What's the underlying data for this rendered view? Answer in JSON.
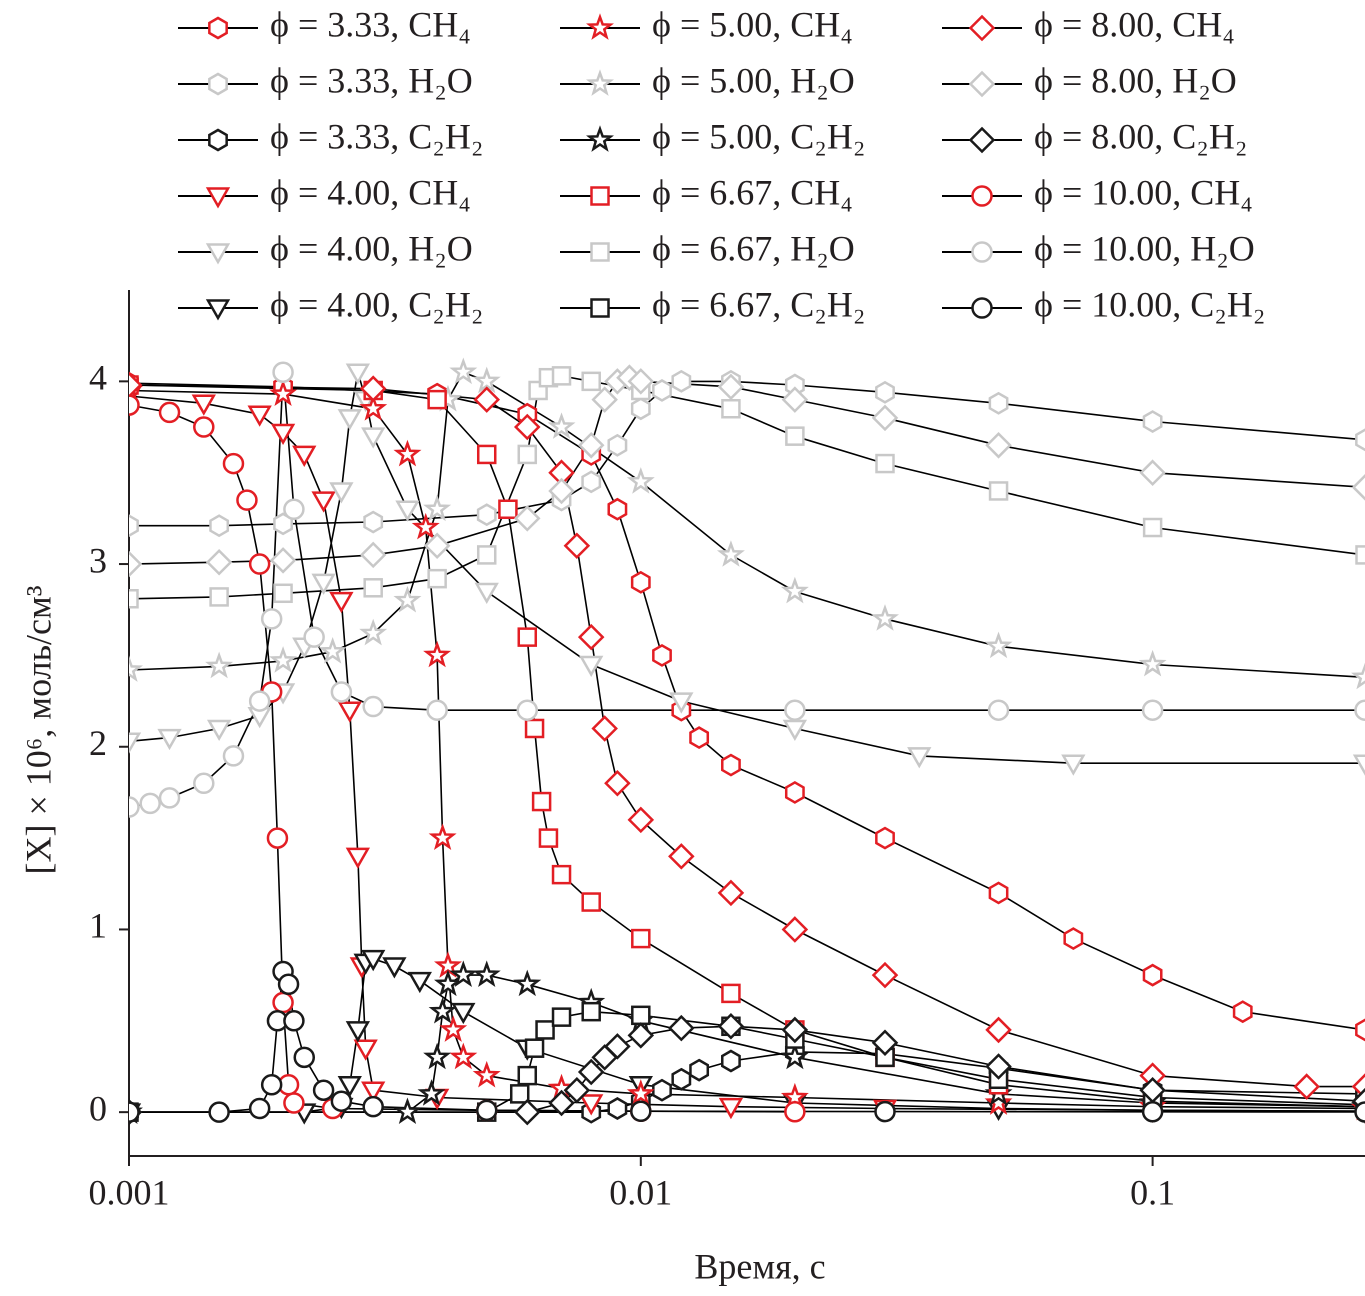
{
  "chart_data": {
    "type": "line",
    "x_label": "Время, с",
    "y_label": "[X] × 10⁶, моль/см³",
    "xlim": [
      0.001,
      0.26
    ],
    "ylim": [
      -0.24,
      4.5
    ],
    "xticks": [
      0.001,
      0.01,
      0.1
    ],
    "yticks": [
      0,
      1,
      2,
      3,
      4
    ],
    "x_log": true,
    "line_color": "#000000",
    "series": [
      {
        "name": "ϕ = 3.33, CH₄",
        "color": "#e31e24",
        "marker": "hexagon",
        "x": [
          0.001,
          0.002,
          0.004,
          0.006,
          0.008,
          0.009,
          0.01,
          0.011,
          0.012,
          0.013,
          0.015,
          0.02,
          0.03,
          0.05,
          0.07,
          0.1,
          0.15,
          0.26
        ],
        "values": [
          3.99,
          3.97,
          3.93,
          3.82,
          3.6,
          3.3,
          2.9,
          2.5,
          2.2,
          2.05,
          1.9,
          1.75,
          1.5,
          1.2,
          0.95,
          0.75,
          0.55,
          0.45
        ]
      },
      {
        "name": "ϕ = 3.33, H₂O",
        "color": "#c8c8c8",
        "marker": "hexagon",
        "x": [
          0.001,
          0.0015,
          0.002,
          0.003,
          0.005,
          0.007,
          0.008,
          0.009,
          0.01,
          0.011,
          0.012,
          0.015,
          0.02,
          0.03,
          0.05,
          0.1,
          0.26
        ],
        "values": [
          3.21,
          3.21,
          3.22,
          3.23,
          3.27,
          3.35,
          3.45,
          3.65,
          3.85,
          3.95,
          4.0,
          4.0,
          3.98,
          3.94,
          3.88,
          3.78,
          3.68
        ]
      },
      {
        "name": "ϕ = 3.33, C₂H₂",
        "color": "#1a1a1a",
        "marker": "hexagon",
        "x": [
          0.001,
          0.008,
          0.009,
          0.01,
          0.011,
          0.012,
          0.013,
          0.015,
          0.02,
          0.03,
          0.05,
          0.1,
          0.26
        ],
        "values": [
          0,
          0,
          0.02,
          0.06,
          0.12,
          0.18,
          0.23,
          0.28,
          0.33,
          0.32,
          0.24,
          0.12,
          0.1
        ]
      },
      {
        "name": "ϕ = 4.00, CH₄",
        "color": "#e31e24",
        "marker": "triangle",
        "x": [
          0.001,
          0.0014,
          0.0018,
          0.002,
          0.0022,
          0.0024,
          0.0026,
          0.0027,
          0.0028,
          0.00285,
          0.0029,
          0.003,
          0.004,
          0.008,
          0.015,
          0.03,
          0.1,
          0.26
        ],
        "values": [
          3.92,
          3.88,
          3.82,
          3.72,
          3.6,
          3.35,
          2.8,
          2.2,
          1.4,
          0.8,
          0.35,
          0.12,
          0.08,
          0.05,
          0.03,
          0.02,
          0.01,
          0.005
        ]
      },
      {
        "name": "ϕ = 4.00, H₂O",
        "color": "#c8c8c8",
        "marker": "triangle",
        "x": [
          0.001,
          0.0012,
          0.0015,
          0.0018,
          0.002,
          0.0022,
          0.0024,
          0.0026,
          0.0027,
          0.0028,
          0.0029,
          0.003,
          0.0035,
          0.005,
          0.008,
          0.012,
          0.02,
          0.035,
          0.07,
          0.26
        ],
        "values": [
          2.03,
          2.05,
          2.1,
          2.17,
          2.3,
          2.55,
          2.9,
          3.4,
          3.8,
          4.05,
          3.9,
          3.7,
          3.3,
          2.85,
          2.45,
          2.25,
          2.1,
          1.95,
          1.91,
          1.91
        ]
      },
      {
        "name": "ϕ = 4.00, C₂H₂",
        "color": "#1a1a1a",
        "marker": "triangle",
        "x": [
          0.001,
          0.0022,
          0.0026,
          0.0027,
          0.0028,
          0.0029,
          0.003,
          0.0033,
          0.0037,
          0.0045,
          0.006,
          0.01,
          0.02,
          0.05,
          0.1,
          0.26
        ],
        "values": [
          0,
          0,
          0.03,
          0.15,
          0.45,
          0.82,
          0.84,
          0.8,
          0.72,
          0.55,
          0.35,
          0.15,
          0.05,
          0.02,
          0.01,
          0.005
        ]
      },
      {
        "name": "ϕ = 5.00, CH₄",
        "color": "#e31e24",
        "marker": "star",
        "x": [
          0.001,
          0.002,
          0.003,
          0.0035,
          0.0038,
          0.004,
          0.0041,
          0.0042,
          0.0043,
          0.0045,
          0.005,
          0.007,
          0.01,
          0.02,
          0.05,
          0.1,
          0.26
        ],
        "values": [
          3.95,
          3.93,
          3.85,
          3.6,
          3.2,
          2.5,
          1.5,
          0.8,
          0.45,
          0.3,
          0.2,
          0.13,
          0.1,
          0.08,
          0.05,
          0.03,
          0.02
        ]
      },
      {
        "name": "ϕ = 5.00, H₂O",
        "color": "#c8c8c8",
        "marker": "star",
        "x": [
          0.001,
          0.0015,
          0.002,
          0.0025,
          0.003,
          0.0035,
          0.004,
          0.0042,
          0.0045,
          0.005,
          0.007,
          0.01,
          0.015,
          0.02,
          0.03,
          0.05,
          0.1,
          0.26
        ],
        "values": [
          2.42,
          2.44,
          2.47,
          2.52,
          2.62,
          2.8,
          3.3,
          3.9,
          4.05,
          4.0,
          3.75,
          3.45,
          3.05,
          2.85,
          2.7,
          2.55,
          2.45,
          2.38
        ]
      },
      {
        "name": "ϕ = 5.00, C₂H₂",
        "color": "#1a1a1a",
        "marker": "star",
        "x": [
          0.001,
          0.0035,
          0.0039,
          0.004,
          0.0041,
          0.0042,
          0.0045,
          0.005,
          0.006,
          0.008,
          0.01,
          0.02,
          0.05,
          0.1,
          0.26
        ],
        "values": [
          0,
          0,
          0.1,
          0.3,
          0.55,
          0.7,
          0.75,
          0.75,
          0.7,
          0.6,
          0.5,
          0.3,
          0.1,
          0.05,
          0.03
        ]
      },
      {
        "name": "ϕ = 6.67, CH₄",
        "color": "#e31e24",
        "marker": "square",
        "x": [
          0.001,
          0.003,
          0.004,
          0.005,
          0.0055,
          0.006,
          0.0062,
          0.0064,
          0.0066,
          0.007,
          0.008,
          0.01,
          0.015,
          0.02,
          0.03,
          0.05,
          0.1,
          0.26
        ],
        "values": [
          3.98,
          3.95,
          3.9,
          3.6,
          3.3,
          2.6,
          2.1,
          1.7,
          1.5,
          1.3,
          1.15,
          0.95,
          0.65,
          0.45,
          0.3,
          0.15,
          0.06,
          0.03
        ]
      },
      {
        "name": "ϕ = 6.67, H₂O",
        "color": "#c8c8c8",
        "marker": "square",
        "x": [
          0.001,
          0.0015,
          0.002,
          0.003,
          0.004,
          0.005,
          0.006,
          0.0063,
          0.0066,
          0.007,
          0.008,
          0.01,
          0.015,
          0.02,
          0.03,
          0.05,
          0.1,
          0.26
        ],
        "values": [
          2.81,
          2.82,
          2.84,
          2.87,
          2.92,
          3.05,
          3.6,
          3.95,
          4.02,
          4.03,
          4.0,
          3.95,
          3.85,
          3.7,
          3.55,
          3.4,
          3.2,
          3.05
        ]
      },
      {
        "name": "ϕ = 6.67, C₂H₂",
        "color": "#1a1a1a",
        "marker": "square",
        "x": [
          0.001,
          0.005,
          0.0058,
          0.006,
          0.0062,
          0.0065,
          0.007,
          0.008,
          0.01,
          0.015,
          0.02,
          0.03,
          0.05,
          0.1,
          0.26
        ],
        "values": [
          0,
          0,
          0.1,
          0.2,
          0.35,
          0.45,
          0.52,
          0.55,
          0.53,
          0.47,
          0.4,
          0.3,
          0.18,
          0.08,
          0.04
        ]
      },
      {
        "name": "ϕ = 8.00, CH₄",
        "color": "#e31e24",
        "marker": "diamond",
        "x": [
          0.001,
          0.003,
          0.005,
          0.006,
          0.007,
          0.0075,
          0.008,
          0.0085,
          0.009,
          0.01,
          0.012,
          0.015,
          0.02,
          0.03,
          0.05,
          0.1,
          0.2,
          0.26
        ],
        "values": [
          3.98,
          3.96,
          3.9,
          3.75,
          3.5,
          3.1,
          2.6,
          2.1,
          1.8,
          1.6,
          1.4,
          1.2,
          1.0,
          0.75,
          0.45,
          0.2,
          0.14,
          0.14
        ]
      },
      {
        "name": "ϕ = 8.00, H₂O",
        "color": "#c8c8c8",
        "marker": "diamond",
        "x": [
          0.001,
          0.0015,
          0.002,
          0.003,
          0.004,
          0.006,
          0.007,
          0.008,
          0.0085,
          0.009,
          0.0095,
          0.01,
          0.015,
          0.02,
          0.03,
          0.05,
          0.1,
          0.26
        ],
        "values": [
          3.0,
          3.01,
          3.02,
          3.05,
          3.1,
          3.25,
          3.4,
          3.65,
          3.9,
          4.0,
          4.02,
          4.0,
          3.97,
          3.9,
          3.8,
          3.65,
          3.5,
          3.42
        ]
      },
      {
        "name": "ϕ = 8.00, C₂H₂",
        "color": "#1a1a1a",
        "marker": "diamond",
        "x": [
          0.001,
          0.006,
          0.007,
          0.0075,
          0.008,
          0.0085,
          0.009,
          0.01,
          0.012,
          0.015,
          0.02,
          0.03,
          0.05,
          0.1,
          0.26
        ],
        "values": [
          0,
          0,
          0.05,
          0.12,
          0.22,
          0.3,
          0.36,
          0.42,
          0.46,
          0.47,
          0.45,
          0.38,
          0.25,
          0.12,
          0.06
        ]
      },
      {
        "name": "ϕ = 10.00, CH₄",
        "color": "#e31e24",
        "marker": "circle",
        "x": [
          0.001,
          0.0012,
          0.0014,
          0.0016,
          0.0017,
          0.0018,
          0.0019,
          0.00195,
          0.002,
          0.00205,
          0.0021,
          0.0025,
          0.005,
          0.01,
          0.02
        ],
        "values": [
          3.87,
          3.83,
          3.75,
          3.55,
          3.35,
          3.0,
          2.3,
          1.5,
          0.6,
          0.15,
          0.05,
          0.02,
          0.01,
          0.005,
          0.002
        ]
      },
      {
        "name": "ϕ = 10.00, H₂O",
        "color": "#c8c8c8",
        "marker": "circle",
        "x": [
          0.001,
          0.0011,
          0.0012,
          0.0014,
          0.0016,
          0.0018,
          0.0019,
          0.002,
          0.0021,
          0.0023,
          0.0026,
          0.003,
          0.004,
          0.006,
          0.02,
          0.05,
          0.1,
          0.26
        ],
        "values": [
          1.67,
          1.69,
          1.72,
          1.8,
          1.95,
          2.25,
          2.7,
          4.05,
          3.3,
          2.6,
          2.3,
          2.22,
          2.2,
          2.2,
          2.2,
          2.2,
          2.2,
          2.2
        ]
      },
      {
        "name": "ϕ = 10.00, C₂H₂",
        "color": "#1a1a1a",
        "marker": "circle",
        "x": [
          0.001,
          0.0015,
          0.0018,
          0.0019,
          0.00195,
          0.002,
          0.00205,
          0.0021,
          0.0022,
          0.0024,
          0.0026,
          0.003,
          0.005,
          0.01,
          0.03,
          0.1,
          0.26
        ],
        "values": [
          0,
          0,
          0.02,
          0.15,
          0.5,
          0.77,
          0.7,
          0.5,
          0.3,
          0.12,
          0.06,
          0.03,
          0.01,
          0.005,
          0.003,
          0.002,
          0.001
        ]
      }
    ]
  }
}
